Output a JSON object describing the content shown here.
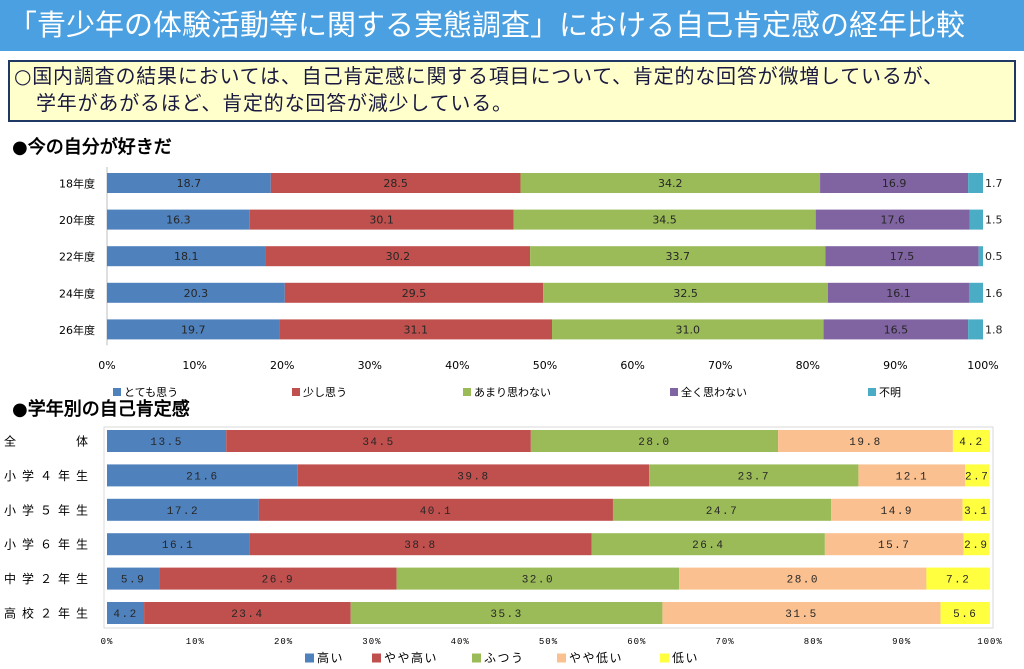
{
  "header": {
    "title": "「青少年の体験活動等に関する実態調査」における自己肯定感の経年比較"
  },
  "summary": {
    "lines": [
      "○国内調査の結果においては、自己肯定感に関する項目について、肯定的な回答が微増しているが、",
      "学年があがるほど、肯定的な回答が減少している。"
    ]
  },
  "theme": {
    "header_bg": "#4aa0e0",
    "header_text": "#ffffff",
    "summary_bg": "#ffffcc",
    "summary_border": "#1f3864"
  },
  "chart_data": [
    {
      "type": "bar",
      "orientation": "horizontal",
      "stacked": "percent",
      "title": "●今の自分が好きだ",
      "categories": [
        "18年度",
        "20年度",
        "22年度",
        "24年度",
        "26年度"
      ],
      "series": [
        {
          "name": "とても思う",
          "color": "#4f81bd",
          "values": [
            18.7,
            16.3,
            18.1,
            20.3,
            19.7
          ]
        },
        {
          "name": "少し思う",
          "color": "#c0504d",
          "values": [
            28.5,
            30.1,
            30.2,
            29.5,
            31.1
          ]
        },
        {
          "name": "あまり思わない",
          "color": "#9bbb59",
          "values": [
            34.2,
            34.5,
            33.7,
            32.5,
            31.0
          ]
        },
        {
          "name": "全く思わない",
          "color": "#8064a2",
          "values": [
            16.9,
            17.6,
            17.5,
            16.1,
            16.5
          ]
        },
        {
          "name": "不明",
          "color": "#4bacc6",
          "values": [
            1.7,
            1.5,
            0.5,
            1.6,
            1.8
          ]
        }
      ],
      "xlim": [
        0,
        100
      ],
      "x_ticks": [
        "0%",
        "10%",
        "20%",
        "30%",
        "40%",
        "50%",
        "60%",
        "70%",
        "80%",
        "90%",
        "100%"
      ],
      "data_labels": true,
      "grid": false,
      "legend": "bottom"
    },
    {
      "type": "bar",
      "orientation": "horizontal",
      "stacked": "percent",
      "title": "●学年別の自己肯定感",
      "categories": [
        "全　　体",
        "小学４年生",
        "小学５年生",
        "小学６年生",
        "中学２年生",
        "高校２年生"
      ],
      "series": [
        {
          "name": "高い",
          "color": "#4f81bd",
          "values": [
            13.5,
            21.6,
            17.2,
            16.1,
            5.9,
            4.2
          ]
        },
        {
          "name": "やや高い",
          "color": "#c0504d",
          "values": [
            34.5,
            39.8,
            40.1,
            38.8,
            26.9,
            23.4
          ]
        },
        {
          "name": "ふつう",
          "color": "#9bbb59",
          "values": [
            28.0,
            23.7,
            24.7,
            26.4,
            32.0,
            35.3
          ]
        },
        {
          "name": "やや低い",
          "color": "#fac090",
          "values": [
            19.8,
            12.1,
            14.9,
            15.7,
            28.0,
            31.5
          ]
        },
        {
          "name": "低い",
          "color": "#ffff40",
          "values": [
            4.2,
            2.7,
            3.1,
            2.9,
            7.2,
            5.6
          ]
        }
      ],
      "xlim": [
        0,
        100
      ],
      "x_ticks": [
        "0%",
        "10%",
        "20%",
        "30%",
        "40%",
        "50%",
        "60%",
        "70%",
        "80%",
        "90%",
        "100%"
      ],
      "data_labels": true,
      "grid": false,
      "legend": "bottom"
    }
  ]
}
